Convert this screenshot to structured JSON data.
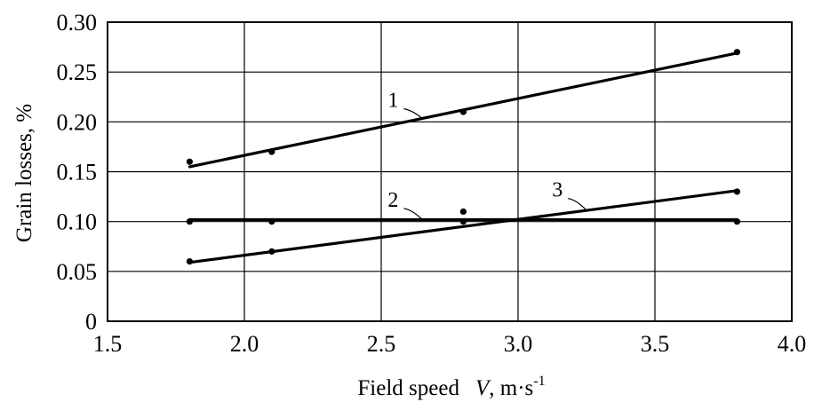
{
  "chart_data": {
    "type": "scatter",
    "title": "",
    "xlabel": "Field speed",
    "xlabel_var": "V",
    "xlabel_unit": ", m·s",
    "xlabel_exp": "-1",
    "ylabel": "Grain losses, %",
    "xlim": [
      1.5,
      4.0
    ],
    "ylim": [
      0,
      0.3
    ],
    "x_ticks": [
      1.5,
      2.0,
      2.5,
      3.0,
      3.5,
      4.0
    ],
    "x_tick_labels": [
      "1.5",
      "2.0",
      "2.5",
      "3.0",
      "3.5",
      "4.0"
    ],
    "y_ticks": [
      0,
      0.05,
      0.1,
      0.15,
      0.2,
      0.25,
      0.3
    ],
    "y_tick_labels": [
      "0",
      "0.05",
      "0.10",
      "0.15",
      "0.20",
      "0.25",
      "0.30"
    ],
    "grid": true,
    "series": [
      {
        "name": "1",
        "points": [
          {
            "x": 1.8,
            "y": 0.16
          },
          {
            "x": 2.1,
            "y": 0.17
          },
          {
            "x": 2.8,
            "y": 0.21
          },
          {
            "x": 3.8,
            "y": 0.27
          }
        ],
        "trend": [
          [
            1.8,
            0.155
          ],
          [
            3.8,
            0.269
          ]
        ],
        "label_at": [
          2.55,
          0.215
        ]
      },
      {
        "name": "2",
        "points": [
          {
            "x": 1.8,
            "y": 0.1
          },
          {
            "x": 2.1,
            "y": 0.1
          },
          {
            "x": 2.8,
            "y": 0.1
          },
          {
            "x": 3.8,
            "y": 0.1
          }
        ],
        "trend": [
          [
            1.8,
            0.102
          ],
          [
            3.8,
            0.102
          ]
        ],
        "label_at": [
          2.55,
          0.115
        ]
      },
      {
        "name": "3",
        "points": [
          {
            "x": 1.8,
            "y": 0.06
          },
          {
            "x": 2.1,
            "y": 0.07
          },
          {
            "x": 2.8,
            "y": 0.11
          },
          {
            "x": 3.8,
            "y": 0.13
          }
        ],
        "trend": [
          [
            1.8,
            0.059
          ],
          [
            3.8,
            0.131
          ]
        ],
        "label_at": [
          3.15,
          0.125
        ]
      }
    ]
  }
}
